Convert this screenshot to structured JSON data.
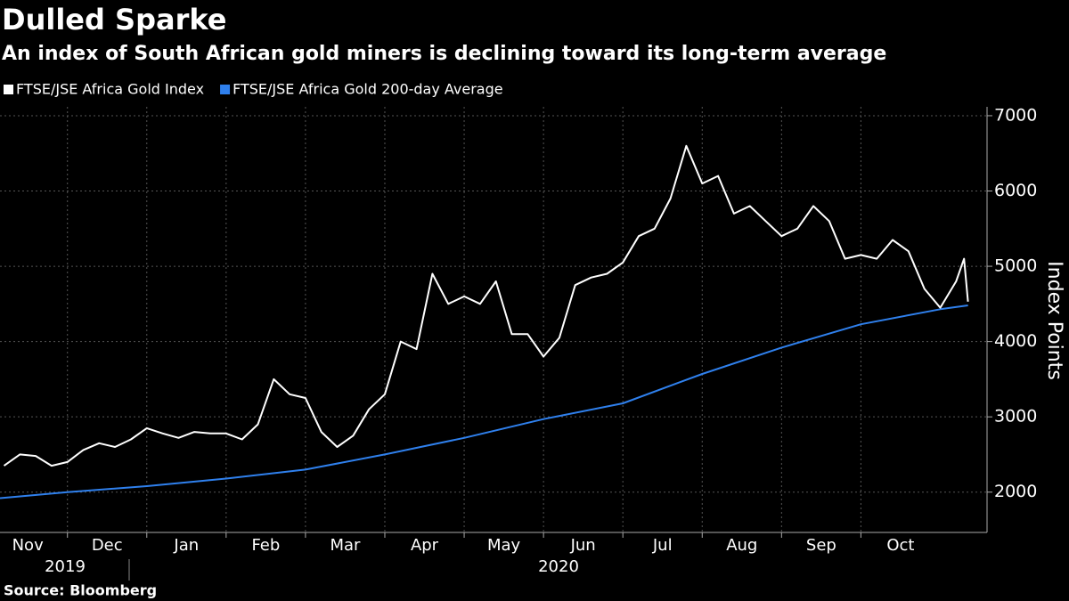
{
  "chart_data": {
    "type": "line",
    "title": "Dulled Sparke",
    "subtitle": "An index of South African gold miners is declining toward its long-term average",
    "y_label": "Index Points",
    "source": "Source: Bloomberg",
    "years": [
      "2019",
      "2020"
    ],
    "series": [
      {
        "name": "FTSE/JSE Africa Gold Index",
        "color": "#ffffff",
        "x": [
          0.2,
          0.4,
          0.6,
          0.8,
          1.0,
          1.2,
          1.4,
          1.6,
          1.8,
          2.0,
          2.2,
          2.4,
          2.6,
          2.8,
          3.0,
          3.2,
          3.4,
          3.6,
          3.8,
          4.0,
          4.2,
          4.4,
          4.6,
          4.8,
          5.0,
          5.2,
          5.4,
          5.6,
          5.8,
          6.0,
          6.2,
          6.4,
          6.6,
          6.8,
          7.0,
          7.2,
          7.4,
          7.6,
          7.8,
          8.0,
          8.2,
          8.4,
          8.6,
          8.8,
          9.0,
          9.2,
          9.4,
          9.6,
          9.8,
          10.0,
          10.2,
          10.4,
          10.6,
          10.8,
          11.0,
          11.2,
          11.4,
          11.6,
          11.8,
          12.0,
          12.2,
          12.3,
          12.35
        ],
        "values": [
          2350,
          2500,
          2480,
          2350,
          2400,
          2560,
          2650,
          2600,
          2700,
          2850,
          2780,
          2720,
          2800,
          2780,
          2780,
          2700,
          2900,
          3500,
          3300,
          3250,
          2800,
          2600,
          2750,
          3100,
          3300,
          4000,
          3900,
          4900,
          4500,
          4600,
          4500,
          4800,
          4100,
          4100,
          3800,
          4050,
          4750,
          4850,
          4900,
          5050,
          5400,
          5500,
          5900,
          6600,
          6100,
          6200,
          5700,
          5800,
          5600,
          5400,
          5500,
          5800,
          5600,
          5100,
          5150,
          5100,
          5350,
          5200,
          4700,
          4450,
          4800,
          5100,
          4530
        ]
      },
      {
        "name": "FTSE/JSE Africa Gold 200-day Average",
        "color": "#2f80ed",
        "x": [
          0.15,
          1,
          2,
          3,
          4,
          5,
          6,
          7,
          8,
          9,
          10,
          11,
          12,
          12.35
        ],
        "values": [
          1920,
          2000,
          2080,
          2180,
          2300,
          2500,
          2720,
          2970,
          3180,
          3570,
          3920,
          4230,
          4430,
          4480
        ]
      }
    ],
    "xlim": [
      0.15,
      12.5
    ],
    "xticks": [
      {
        "value": 0.5,
        "label": "Nov"
      },
      {
        "value": 1.5,
        "label": "Dec"
      },
      {
        "value": 2.5,
        "label": "Jan"
      },
      {
        "value": 3.5,
        "label": "Feb"
      },
      {
        "value": 4.5,
        "label": "Mar"
      },
      {
        "value": 5.5,
        "label": "Apr"
      },
      {
        "value": 6.5,
        "label": "May"
      },
      {
        "value": 7.5,
        "label": "Jun"
      },
      {
        "value": 8.5,
        "label": "Jul"
      },
      {
        "value": 9.5,
        "label": "Aug"
      },
      {
        "value": 10.5,
        "label": "Sep"
      },
      {
        "value": 11.5,
        "label": "Oct"
      }
    ],
    "ylim": [
      1500,
      7100
    ],
    "yticks": [
      2000,
      3000,
      4000,
      5000,
      6000,
      7000
    ],
    "grid": true
  }
}
